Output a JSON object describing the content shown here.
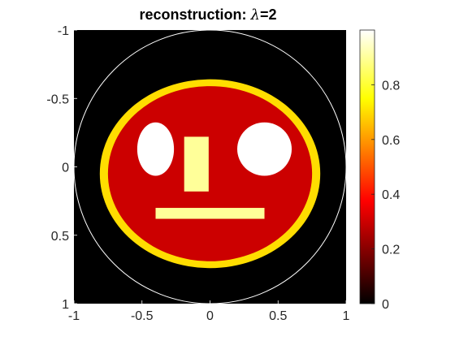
{
  "chart_data": {
    "type": "heatmap",
    "title": "reconstruction: λ=2",
    "title_parts": {
      "prefix": "reconstruction: ",
      "symbol": "λ",
      "suffix": "=2"
    },
    "xlim": [
      -1,
      1
    ],
    "ylim": [
      -1,
      1
    ],
    "y_reversed": true,
    "x_ticks": [
      {
        "value": -1,
        "label": "-1"
      },
      {
        "value": -0.5,
        "label": "-0.5"
      },
      {
        "value": 0,
        "label": "0"
      },
      {
        "value": 0.5,
        "label": "0.5"
      },
      {
        "value": 1,
        "label": "1"
      }
    ],
    "y_ticks": [
      {
        "value": -1,
        "label": "-1"
      },
      {
        "value": -0.5,
        "label": "-0.5"
      },
      {
        "value": 0,
        "label": "0"
      },
      {
        "value": 0.5,
        "label": "0.5"
      },
      {
        "value": 1,
        "label": "1"
      }
    ],
    "colormap": "hot",
    "clim": [
      0,
      1
    ],
    "colorbar_ticks": [
      {
        "value": 0,
        "label": "0"
      },
      {
        "value": 0.2,
        "label": "0.2"
      },
      {
        "value": 0.4,
        "label": "0.4"
      },
      {
        "value": 0.6,
        "label": "0.6"
      },
      {
        "value": 0.8,
        "label": "0.8"
      }
    ],
    "background_value": 0,
    "unit_circle": {
      "center": [
        0,
        0
      ],
      "radius": 1,
      "color": "#ffffff"
    },
    "regions": [
      {
        "name": "outer-ellipse",
        "shape": "ellipse",
        "center": [
          0,
          0.05
        ],
        "radii": [
          0.81,
          0.69
        ],
        "value": 0.7
      },
      {
        "name": "inner-ellipse",
        "shape": "ellipse",
        "center": [
          0,
          0.05
        ],
        "radii": [
          0.75,
          0.64
        ],
        "value": 0.3
      },
      {
        "name": "left-eye",
        "shape": "ellipse",
        "center": [
          -0.4,
          -0.13
        ],
        "radii": [
          0.135,
          0.195
        ],
        "value": 1.0
      },
      {
        "name": "right-eye",
        "shape": "ellipse",
        "center": [
          0.4,
          -0.13
        ],
        "radii": [
          0.2,
          0.195
        ],
        "value": 1.0
      },
      {
        "name": "nose",
        "shape": "rect",
        "x": [
          -0.19,
          -0.01
        ],
        "y": [
          -0.22,
          0.18
        ],
        "value": 0.9
      },
      {
        "name": "mouth",
        "shape": "rect",
        "x": [
          -0.4,
          0.4
        ],
        "y": [
          0.3,
          0.38
        ],
        "value": 0.9
      }
    ]
  }
}
